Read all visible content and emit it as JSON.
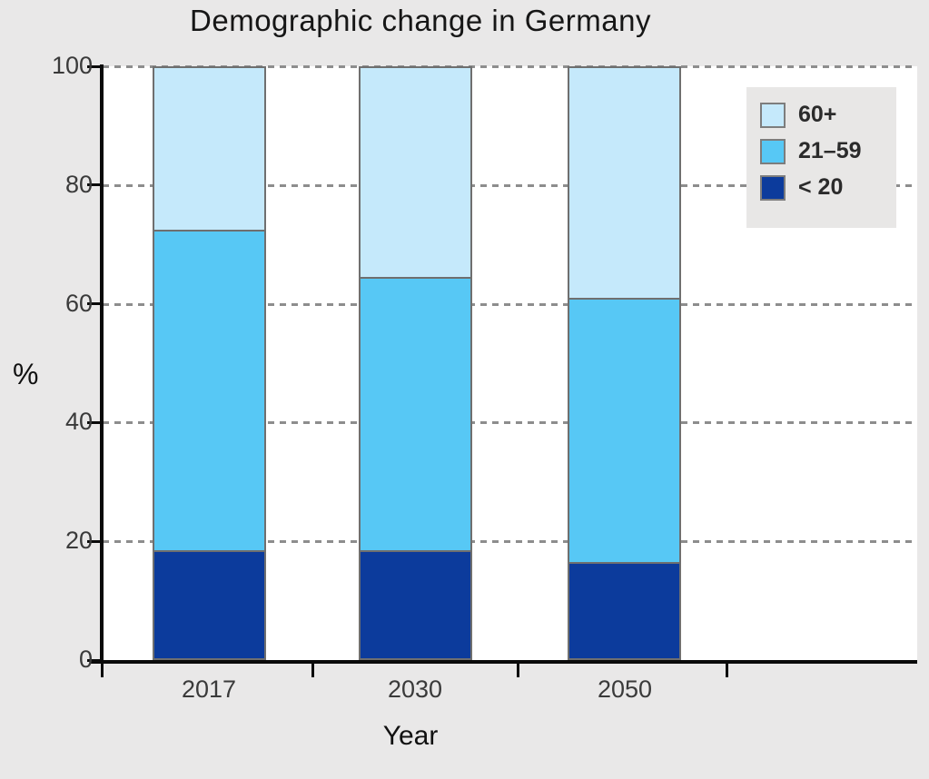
{
  "chart_data": {
    "type": "bar",
    "stacked": true,
    "title": "Demographic change in Germany",
    "xlabel": "Year",
    "ylabel": "%",
    "categories": [
      "2017",
      "2030",
      "2050"
    ],
    "series": [
      {
        "name": "< 20",
        "color": "#0c3b9c",
        "values": [
          18.5,
          18.5,
          16.5
        ]
      },
      {
        "name": "21–59",
        "color": "#57c8f5",
        "values": [
          54.0,
          46.0,
          44.5
        ]
      },
      {
        "name": "60+",
        "color": "#c5e9fb",
        "values": [
          27.5,
          35.5,
          39.0
        ]
      }
    ],
    "ylim": [
      0,
      100
    ],
    "yticks": [
      0,
      20,
      40,
      60,
      80,
      100
    ],
    "ytick_labels": [
      "0",
      "20",
      "40",
      "60",
      "80",
      "100"
    ],
    "grid": "horizontal dashed",
    "gridline_color": "#8d8d8d",
    "legend_position": "upper right",
    "legend_order": [
      "60+",
      "21–59",
      "< 20"
    ],
    "bar_border_color": "#6f6f6f",
    "axis_color": "#0a0a0a",
    "background_color": "#e9e8e8",
    "plot_background_color": "#ffffff"
  }
}
